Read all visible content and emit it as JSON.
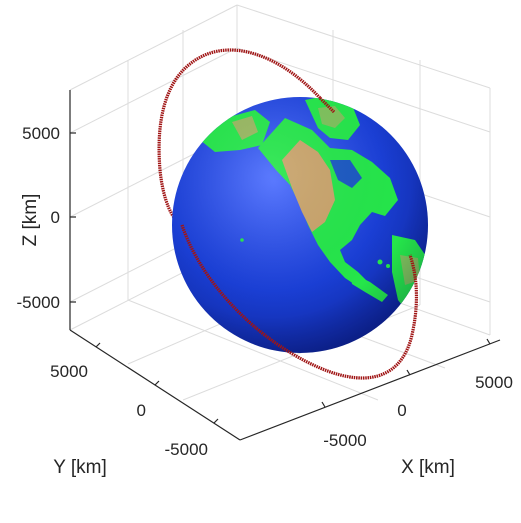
{
  "chart_data": {
    "type": "3d-orbit",
    "title": "",
    "xlabel": "X [km]",
    "ylabel": "Y [km]",
    "zlabel": "Z [km]",
    "x_ticks": [
      "-5000",
      "0",
      "5000"
    ],
    "y_ticks": [
      "5000",
      "0",
      "-5000"
    ],
    "z_ticks": [
      "5000",
      "0",
      "-5000"
    ],
    "grid": true,
    "earth": {
      "ocean_color": "#1a3fd6",
      "land_color": "#25e64a",
      "desert_color": "#c9a46a"
    },
    "orbit": {
      "color": "#a01515"
    }
  }
}
